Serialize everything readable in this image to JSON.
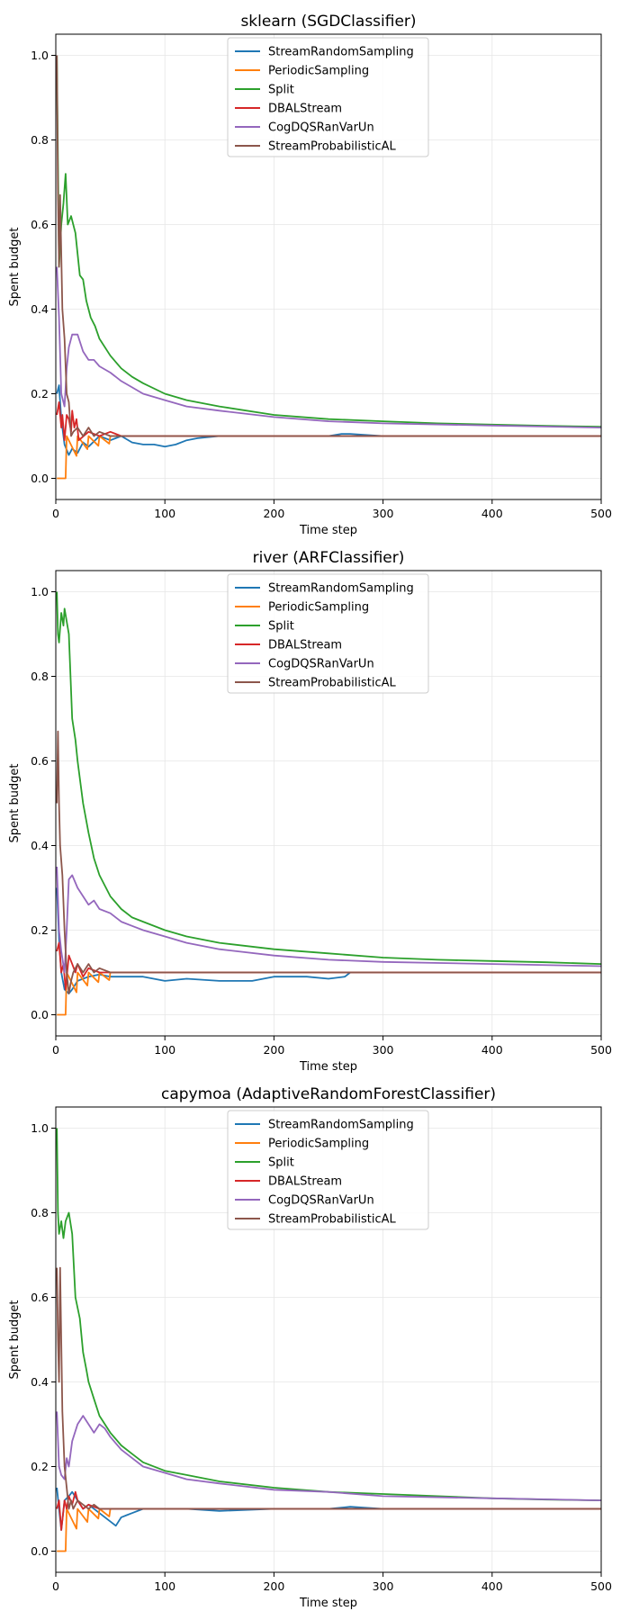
{
  "chart_data": [
    {
      "type": "line",
      "title": "sklearn (SGDClassifier)",
      "xlabel": "Time step",
      "ylabel": "Spent budget",
      "xlim": [
        0,
        500
      ],
      "ylim": [
        -0.05,
        1.05
      ],
      "xticks": [
        "0",
        "100",
        "200",
        "300",
        "400",
        "500"
      ],
      "yticks": [
        "0.0",
        "0.2",
        "0.4",
        "0.6",
        "0.8",
        "1.0"
      ],
      "grid": true,
      "legend": "top-center",
      "series": [
        {
          "name": "StreamRandomSampling",
          "color": "#1f77b4",
          "x": [
            1,
            3,
            5,
            8,
            12,
            15,
            20,
            25,
            30,
            40,
            50,
            60,
            70,
            80,
            90,
            100,
            110,
            120,
            130,
            150,
            200,
            250,
            262,
            270,
            300,
            400,
            500
          ],
          "y": [
            0.2,
            0.22,
            0.14,
            0.08,
            0.055,
            0.07,
            0.06,
            0.085,
            0.075,
            0.1,
            0.09,
            0.1,
            0.085,
            0.08,
            0.08,
            0.075,
            0.08,
            0.09,
            0.095,
            0.1,
            0.1,
            0.1,
            0.105,
            0.105,
            0.1,
            0.1,
            0.1
          ]
        },
        {
          "name": "PeriodicSampling",
          "color": "#ff7f0e",
          "x": [
            1,
            9,
            10,
            19,
            20,
            29,
            30,
            39,
            40,
            49,
            50,
            100,
            150,
            200,
            300,
            400,
            500
          ],
          "y": [
            0.0,
            0.0,
            0.1,
            0.053,
            0.1,
            0.069,
            0.1,
            0.077,
            0.1,
            0.082,
            0.1,
            0.1,
            0.1,
            0.1,
            0.1,
            0.1,
            0.1
          ]
        },
        {
          "name": "Split",
          "color": "#2ca02c",
          "x": [
            1,
            3,
            5,
            7,
            9,
            11,
            14,
            18,
            22,
            25,
            28,
            32,
            36,
            40,
            50,
            60,
            70,
            80,
            100,
            120,
            150,
            200,
            250,
            300,
            350,
            400,
            450,
            500
          ],
          "y": [
            1.0,
            0.5,
            0.6,
            0.65,
            0.72,
            0.6,
            0.62,
            0.58,
            0.48,
            0.47,
            0.42,
            0.38,
            0.36,
            0.33,
            0.29,
            0.26,
            0.24,
            0.225,
            0.2,
            0.185,
            0.17,
            0.15,
            0.14,
            0.135,
            0.13,
            0.127,
            0.124,
            0.122
          ]
        },
        {
          "name": "DBALStream",
          "color": "#d62728",
          "x": [
            1,
            3,
            5,
            6,
            8,
            10,
            12,
            14,
            15,
            17,
            19,
            21,
            30,
            40,
            50,
            60,
            80,
            100,
            150,
            200,
            300,
            400,
            500
          ],
          "y": [
            0.15,
            0.18,
            0.12,
            0.15,
            0.09,
            0.15,
            0.14,
            0.11,
            0.16,
            0.12,
            0.14,
            0.09,
            0.11,
            0.1,
            0.11,
            0.1,
            0.1,
            0.1,
            0.1,
            0.1,
            0.1,
            0.1,
            0.1
          ]
        },
        {
          "name": "CogDQSRanVarUn",
          "color": "#9467bd",
          "x": [
            1,
            3,
            5,
            8,
            10,
            12,
            15,
            20,
            25,
            30,
            35,
            40,
            50,
            60,
            70,
            80,
            100,
            120,
            150,
            200,
            250,
            300,
            400,
            500
          ],
          "y": [
            0.5,
            0.38,
            0.2,
            0.17,
            0.26,
            0.31,
            0.34,
            0.34,
            0.3,
            0.28,
            0.28,
            0.265,
            0.25,
            0.23,
            0.215,
            0.2,
            0.185,
            0.17,
            0.16,
            0.145,
            0.135,
            0.13,
            0.125,
            0.12
          ]
        },
        {
          "name": "StreamProbabilisticAL",
          "color": "#8c564b",
          "x": [
            1,
            2,
            3,
            4,
            6,
            8,
            10,
            12,
            14,
            16,
            20,
            25,
            30,
            35,
            40,
            50,
            60,
            80,
            100,
            150,
            200,
            300,
            400,
            500
          ],
          "y": [
            1.0,
            0.67,
            0.5,
            0.67,
            0.4,
            0.33,
            0.2,
            0.18,
            0.1,
            0.11,
            0.12,
            0.1,
            0.12,
            0.1,
            0.11,
            0.1,
            0.1,
            0.1,
            0.1,
            0.1,
            0.1,
            0.1,
            0.1,
            0.1
          ]
        }
      ]
    },
    {
      "type": "line",
      "title": "river (ARFClassifier)",
      "xlabel": "Time step",
      "ylabel": "Spent budget",
      "xlim": [
        0,
        500
      ],
      "ylim": [
        -0.05,
        1.05
      ],
      "xticks": [
        "0",
        "100",
        "200",
        "300",
        "400",
        "500"
      ],
      "yticks": [
        "0.0",
        "0.2",
        "0.4",
        "0.6",
        "0.8",
        "1.0"
      ],
      "grid": true,
      "legend": "top-center",
      "series": [
        {
          "name": "StreamRandomSampling",
          "color": "#1f77b4",
          "x": [
            1,
            3,
            5,
            8,
            12,
            15,
            20,
            30,
            40,
            50,
            60,
            80,
            100,
            120,
            150,
            180,
            200,
            230,
            250,
            265,
            270,
            300,
            400,
            500
          ],
          "y": [
            0.3,
            0.18,
            0.1,
            0.06,
            0.05,
            0.06,
            0.08,
            0.09,
            0.095,
            0.09,
            0.09,
            0.09,
            0.08,
            0.085,
            0.08,
            0.08,
            0.09,
            0.09,
            0.085,
            0.09,
            0.1,
            0.1,
            0.1,
            0.1
          ]
        },
        {
          "name": "PeriodicSampling",
          "color": "#ff7f0e",
          "x": [
            1,
            9,
            10,
            19,
            20,
            29,
            30,
            39,
            40,
            49,
            50,
            100,
            150,
            200,
            300,
            400,
            500
          ],
          "y": [
            0.0,
            0.0,
            0.1,
            0.053,
            0.1,
            0.069,
            0.1,
            0.077,
            0.1,
            0.082,
            0.1,
            0.1,
            0.1,
            0.1,
            0.1,
            0.1,
            0.1
          ]
        },
        {
          "name": "Split",
          "color": "#2ca02c",
          "x": [
            1,
            2,
            3,
            5,
            7,
            8,
            10,
            12,
            15,
            18,
            20,
            25,
            30,
            35,
            40,
            50,
            60,
            70,
            80,
            100,
            120,
            150,
            200,
            250,
            300,
            350,
            400,
            450,
            500
          ],
          "y": [
            1.0,
            0.9,
            0.88,
            0.95,
            0.92,
            0.96,
            0.93,
            0.9,
            0.7,
            0.65,
            0.6,
            0.5,
            0.43,
            0.37,
            0.33,
            0.28,
            0.25,
            0.23,
            0.22,
            0.2,
            0.185,
            0.17,
            0.155,
            0.145,
            0.135,
            0.13,
            0.127,
            0.124,
            0.12
          ]
        },
        {
          "name": "DBALStream",
          "color": "#d62728",
          "x": [
            1,
            3,
            5,
            7,
            9,
            12,
            15,
            18,
            20,
            25,
            30,
            40,
            50,
            60,
            80,
            100,
            150,
            200,
            300,
            400,
            500
          ],
          "y": [
            0.15,
            0.17,
            0.1,
            0.12,
            0.06,
            0.14,
            0.12,
            0.1,
            0.12,
            0.09,
            0.11,
            0.1,
            0.1,
            0.1,
            0.1,
            0.1,
            0.1,
            0.1,
            0.1,
            0.1,
            0.1
          ]
        },
        {
          "name": "CogDQSRanVarUn",
          "color": "#9467bd",
          "x": [
            1,
            3,
            5,
            8,
            10,
            12,
            15,
            20,
            25,
            30,
            35,
            40,
            50,
            60,
            70,
            80,
            100,
            120,
            150,
            200,
            250,
            300,
            400,
            500
          ],
          "y": [
            0.35,
            0.2,
            0.15,
            0.1,
            0.2,
            0.32,
            0.33,
            0.3,
            0.28,
            0.26,
            0.27,
            0.25,
            0.24,
            0.22,
            0.21,
            0.2,
            0.185,
            0.17,
            0.155,
            0.14,
            0.13,
            0.125,
            0.12,
            0.115
          ]
        },
        {
          "name": "StreamProbabilisticAL",
          "color": "#8c564b",
          "x": [
            1,
            2,
            3,
            4,
            6,
            8,
            10,
            12,
            14,
            16,
            20,
            25,
            30,
            35,
            40,
            50,
            60,
            80,
            100,
            150,
            200,
            300,
            400,
            500
          ],
          "y": [
            0.5,
            0.67,
            0.5,
            0.4,
            0.33,
            0.2,
            0.1,
            0.05,
            0.08,
            0.1,
            0.12,
            0.1,
            0.12,
            0.1,
            0.11,
            0.1,
            0.1,
            0.1,
            0.1,
            0.1,
            0.1,
            0.1,
            0.1,
            0.1
          ]
        }
      ]
    },
    {
      "type": "line",
      "title": "capymoa (AdaptiveRandomForestClassifier)",
      "xlabel": "Time step",
      "ylabel": "Spent budget",
      "xlim": [
        0,
        500
      ],
      "ylim": [
        -0.05,
        1.05
      ],
      "xticks": [
        "0",
        "100",
        "200",
        "300",
        "400",
        "500"
      ],
      "yticks": [
        "0.0",
        "0.2",
        "0.4",
        "0.6",
        "0.8",
        "1.0"
      ],
      "grid": true,
      "legend": "top-center",
      "series": [
        {
          "name": "StreamRandomSampling",
          "color": "#1f77b4",
          "x": [
            1,
            3,
            5,
            8,
            12,
            15,
            20,
            25,
            30,
            40,
            50,
            55,
            60,
            65,
            70,
            80,
            100,
            120,
            150,
            200,
            250,
            270,
            300,
            400,
            500
          ],
          "y": [
            0.15,
            0.1,
            0.05,
            0.12,
            0.13,
            0.14,
            0.12,
            0.1,
            0.11,
            0.09,
            0.07,
            0.06,
            0.08,
            0.085,
            0.09,
            0.1,
            0.1,
            0.1,
            0.095,
            0.1,
            0.1,
            0.105,
            0.1,
            0.1,
            0.1
          ]
        },
        {
          "name": "PeriodicSampling",
          "color": "#ff7f0e",
          "x": [
            1,
            9,
            10,
            19,
            20,
            29,
            30,
            39,
            40,
            49,
            50,
            100,
            150,
            200,
            300,
            400,
            500
          ],
          "y": [
            0.0,
            0.0,
            0.1,
            0.053,
            0.1,
            0.069,
            0.1,
            0.077,
            0.1,
            0.082,
            0.1,
            0.1,
            0.1,
            0.1,
            0.1,
            0.1,
            0.1
          ]
        },
        {
          "name": "Split",
          "color": "#2ca02c",
          "x": [
            1,
            2,
            3,
            5,
            7,
            9,
            12,
            15,
            18,
            22,
            25,
            28,
            30,
            35,
            40,
            50,
            60,
            70,
            80,
            100,
            120,
            150,
            200,
            250,
            300,
            350,
            400,
            450,
            500
          ],
          "y": [
            1.0,
            0.8,
            0.75,
            0.78,
            0.74,
            0.78,
            0.8,
            0.75,
            0.6,
            0.55,
            0.47,
            0.43,
            0.4,
            0.36,
            0.32,
            0.28,
            0.25,
            0.23,
            0.21,
            0.19,
            0.18,
            0.165,
            0.15,
            0.14,
            0.135,
            0.13,
            0.125,
            0.122,
            0.12
          ]
        },
        {
          "name": "DBALStream",
          "color": "#d62728",
          "x": [
            1,
            3,
            5,
            8,
            10,
            12,
            15,
            18,
            20,
            25,
            30,
            40,
            50,
            60,
            80,
            100,
            150,
            200,
            300,
            400,
            500
          ],
          "y": [
            0.1,
            0.12,
            0.05,
            0.12,
            0.1,
            0.13,
            0.11,
            0.14,
            0.12,
            0.1,
            0.11,
            0.1,
            0.1,
            0.1,
            0.1,
            0.1,
            0.1,
            0.1,
            0.1,
            0.1,
            0.1
          ]
        },
        {
          "name": "CogDQSRanVarUn",
          "color": "#9467bd",
          "x": [
            1,
            3,
            5,
            8,
            10,
            12,
            15,
            20,
            25,
            30,
            35,
            40,
            45,
            50,
            60,
            70,
            80,
            100,
            120,
            150,
            200,
            250,
            300,
            400,
            500
          ],
          "y": [
            0.33,
            0.2,
            0.18,
            0.17,
            0.22,
            0.2,
            0.26,
            0.3,
            0.32,
            0.3,
            0.28,
            0.3,
            0.29,
            0.27,
            0.24,
            0.22,
            0.2,
            0.185,
            0.17,
            0.16,
            0.145,
            0.14,
            0.13,
            0.125,
            0.12
          ]
        },
        {
          "name": "StreamProbabilisticAL",
          "color": "#8c564b",
          "x": [
            1,
            2,
            3,
            4,
            6,
            8,
            10,
            12,
            14,
            16,
            20,
            25,
            30,
            35,
            40,
            50,
            60,
            80,
            100,
            150,
            200,
            300,
            400,
            500
          ],
          "y": [
            0.67,
            0.5,
            0.4,
            0.67,
            0.33,
            0.2,
            0.15,
            0.1,
            0.12,
            0.1,
            0.12,
            0.11,
            0.1,
            0.11,
            0.1,
            0.1,
            0.1,
            0.1,
            0.1,
            0.1,
            0.1,
            0.1,
            0.1,
            0.1
          ]
        }
      ]
    }
  ]
}
